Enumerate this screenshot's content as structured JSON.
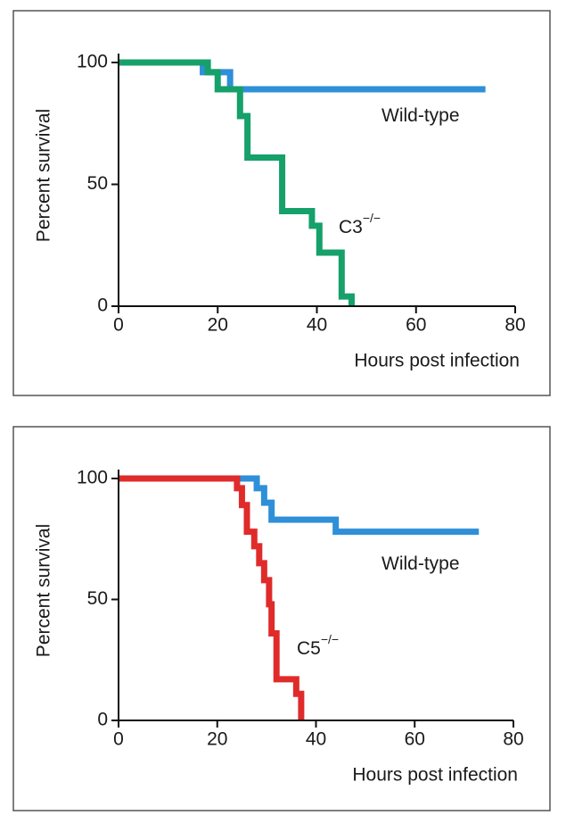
{
  "chart_data": [
    {
      "type": "line",
      "xlabel": "Hours post infection",
      "ylabel": "Percent survival",
      "xlim": [
        0,
        80
      ],
      "xticks": [
        0,
        20,
        40,
        60,
        80
      ],
      "ylim": [
        0,
        100
      ],
      "yticks": [
        0,
        50,
        100
      ],
      "annotations": [
        {
          "text": "Wild-type"
        },
        {
          "text": "C3",
          "sup": "−/−"
        }
      ],
      "series": [
        {
          "name": "Wild-type",
          "color": "#2f8fd8",
          "x": [
            0,
            17,
            17,
            22.5,
            22.5,
            74
          ],
          "values": [
            100,
            100,
            96,
            96,
            89,
            89
          ]
        },
        {
          "name": "C3−/−",
          "color": "#16a06a",
          "x": [
            0,
            18,
            18,
            20,
            20,
            24.5,
            24.5,
            26,
            26,
            33,
            33,
            39,
            39,
            40.5,
            40.5,
            45,
            45,
            47,
            47
          ],
          "values": [
            100,
            100,
            96,
            96,
            89,
            89,
            78,
            78,
            61,
            61,
            39,
            39,
            33,
            33,
            22,
            22,
            4,
            4,
            0
          ]
        }
      ]
    },
    {
      "type": "line",
      "xlabel": "Hours post infection",
      "ylabel": "Percent survival",
      "xlim": [
        0,
        80
      ],
      "xticks": [
        0,
        20,
        40,
        60,
        80
      ],
      "ylim": [
        0,
        100
      ],
      "yticks": [
        0,
        50,
        100
      ],
      "annotations": [
        {
          "text": "Wild-type"
        },
        {
          "text": "C5",
          "sup": "−/−"
        }
      ],
      "series": [
        {
          "name": "Wild-type",
          "color": "#2f8fd8",
          "x": [
            0,
            28,
            28,
            29.5,
            29.5,
            31,
            31,
            44,
            44,
            73
          ],
          "values": [
            100,
            100,
            96,
            96,
            90,
            90,
            83,
            83,
            78,
            78
          ]
        },
        {
          "name": "C5−/−",
          "color": "#e02b2b",
          "x": [
            0,
            24,
            24,
            25,
            25,
            26,
            26,
            27.5,
            27.5,
            28.5,
            28.5,
            29.5,
            29.5,
            30.5,
            30.5,
            31,
            31,
            32,
            32,
            36,
            36,
            37,
            37
          ],
          "values": [
            100,
            100,
            96,
            96,
            89,
            89,
            78,
            78,
            72,
            72,
            65,
            65,
            58,
            58,
            48,
            48,
            36,
            36,
            17,
            17,
            11,
            11,
            0
          ]
        }
      ]
    }
  ]
}
